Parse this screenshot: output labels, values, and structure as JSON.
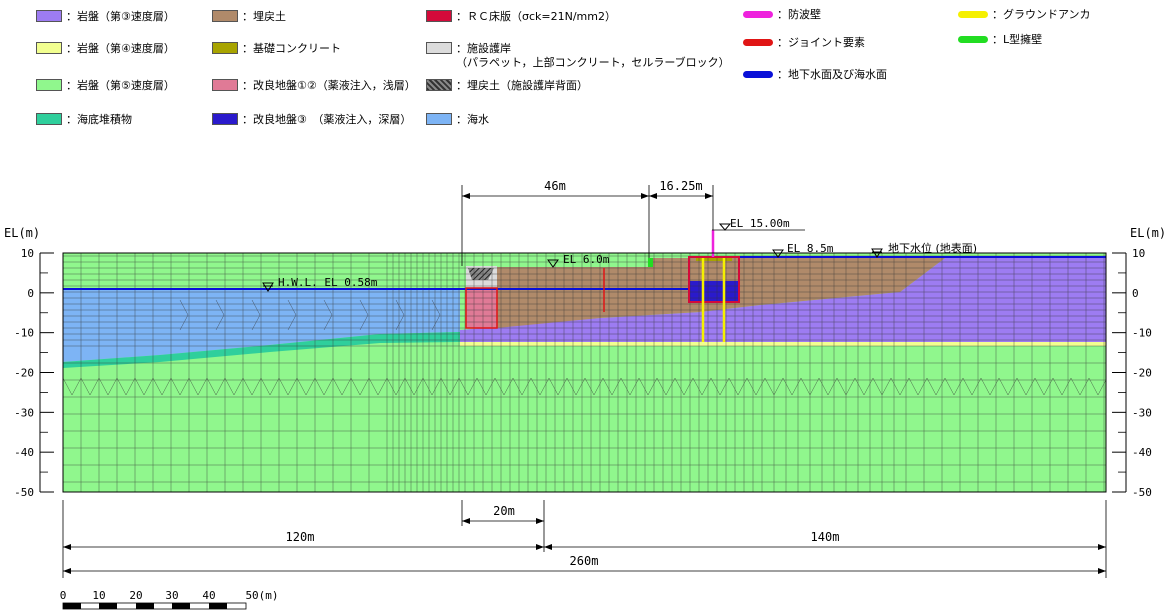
{
  "legend": {
    "material_items": [
      {
        "label": "：岩盤（第③速度層）",
        "color": "#9d7cf2",
        "name": "bedrock-3"
      },
      {
        "label": "：岩盤（第④速度層）",
        "color": "#f2ff90",
        "name": "bedrock-4"
      },
      {
        "label": "：岩盤（第⑤速度層）",
        "color": "#90f78d",
        "name": "bedrock-5"
      },
      {
        "label": "：海底堆積物",
        "color": "#2fcf9c",
        "name": "seabed-sediment"
      },
      {
        "label": "：埋戻土",
        "color": "#b08a6a",
        "name": "backfill"
      },
      {
        "label": "：基礎コンクリート",
        "color": "#a8a400",
        "name": "foundation-concrete"
      },
      {
        "label": "：改良地盤①②（薬液注入，浅層）",
        "color": "#e07a96",
        "name": "improved-ground-shallow"
      },
      {
        "label": "：改良地盤③　（薬液注入，深層）",
        "color": "#2a1acc",
        "name": "improved-ground-deep"
      },
      {
        "label": "：ＲＣ床版（σck=21N/mm2）",
        "color": "#d40a3a",
        "name": "rc-slab"
      },
      {
        "label": "：施設護岸\n（パラペット，上部コンクリート，セルラーブロック）",
        "color": "#dcdcdc",
        "name": "revetment"
      },
      {
        "label": "：埋戻土（施設護岸背面）",
        "color": "#555555",
        "name": "backfill-behind-revetment"
      },
      {
        "label": "：海水",
        "color": "#7db4f5",
        "name": "seawater"
      }
    ],
    "line_items": [
      {
        "label": "：防波壁",
        "color": "#ee22dd",
        "name": "tsunami-wall"
      },
      {
        "label": "：ジョイント要素",
        "color": "#e01515",
        "name": "joint-element"
      },
      {
        "label": "：地下水面及び海水面",
        "color": "#0a10d8",
        "name": "groundwater-surface"
      },
      {
        "label": "：グラウンドアンカ",
        "color": "#f5f000",
        "name": "ground-anchor"
      },
      {
        "label": "：L型擁壁",
        "color": "#22dd22",
        "name": "l-retaining-wall"
      }
    ]
  },
  "diagram": {
    "axis_title_left": "EL(m)",
    "axis_title_right": "EL(m)",
    "ticks": [
      10,
      0,
      -10,
      -20,
      -30,
      -40,
      -50
    ],
    "tick_labels": [
      "10",
      "0",
      "-10",
      "-20",
      "-30",
      "-40",
      "-50"
    ],
    "labels": {
      "hwl": "H.W.L. EL 0.58m",
      "el6": "EL 6.0m",
      "el15": "EL 15.00m",
      "el85": "EL 8.5m",
      "groundwater": "地下水位 (地表面)"
    },
    "dimensions": {
      "d46": "46m",
      "d1625": "16.25m",
      "d20": "20m",
      "d120": "120m",
      "d140": "140m",
      "d260": "260m"
    },
    "scale_bar": {
      "labels": [
        "0",
        "10",
        "20",
        "30",
        "40",
        "50(m)"
      ]
    }
  }
}
